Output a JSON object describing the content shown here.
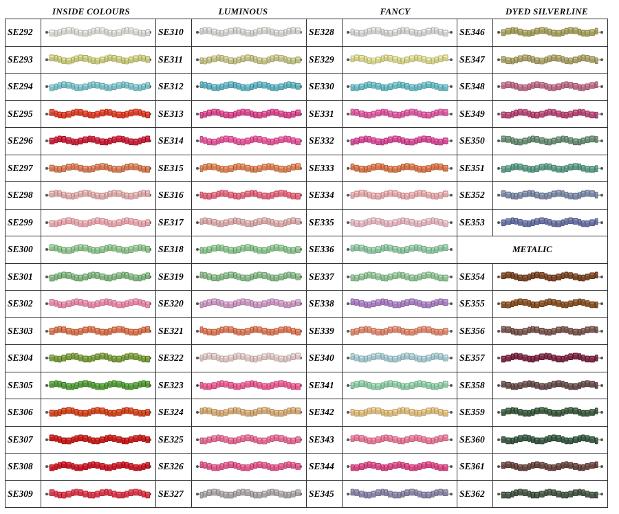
{
  "headers": [
    "INSIDE COLOURS",
    "LUMINOUS",
    "FANCY",
    "DYED SILVERLINE"
  ],
  "metalic_label": "METALIC",
  "columns": [
    {
      "codes": [
        "SE292",
        "SE293",
        "SE294",
        "SE295",
        "SE296",
        "SE297",
        "SE298",
        "SE299",
        "SE300",
        "SE301",
        "SE302",
        "SE303",
        "SE304",
        "SE305",
        "SE306",
        "SE307",
        "SE308",
        "SE309"
      ],
      "colors": [
        "#d4d6d0",
        "#c7c880",
        "#7dbec6",
        "#d6442f",
        "#c4253e",
        "#d17c58",
        "#dcaaa8",
        "#e4a5ab",
        "#8fc08e",
        "#82b481",
        "#e38aa4",
        "#d27552",
        "#7c9a43",
        "#569a3e",
        "#cb4a24",
        "#c2211f",
        "#c41c2c",
        "#d33d4e"
      ]
    },
    {
      "codes": [
        "SE310",
        "SE311",
        "SE312",
        "SE313",
        "SE314",
        "SE315",
        "SE316",
        "SE317",
        "SE318",
        "SE319",
        "SE320",
        "SE321",
        "SE322",
        "SE323",
        "SE324",
        "SE325",
        "SE326",
        "SE327"
      ],
      "colors": [
        "#cfd0cb",
        "#c2c08a",
        "#64b0bd",
        "#d24d8f",
        "#de5a9a",
        "#d68258",
        "#dd6a7d",
        "#d6aaa8",
        "#8cc08f",
        "#8ab789",
        "#c898c0",
        "#d67a5c",
        "#d8c4c1",
        "#e35f92",
        "#cfa878",
        "#df6e96",
        "#db5b8d",
        "#a8a4a8"
      ]
    },
    {
      "codes": [
        "SE328",
        "SE329",
        "SE330",
        "SE331",
        "SE332",
        "SE333",
        "SE334",
        "SE335",
        "SE336",
        "SE337",
        "SE338",
        "SE339",
        "SE340",
        "SE341",
        "SE342",
        "SE343",
        "SE344",
        "SE345"
      ],
      "colors": [
        "#cfd1cd",
        "#d4d28e",
        "#6db8c0",
        "#d65ea0",
        "#d04f97",
        "#d2774f",
        "#e3a8aa",
        "#e0b4be",
        "#8fc3a0",
        "#92c096",
        "#a680bf",
        "#d98870",
        "#a5c7cc",
        "#8ec8a4",
        "#d8ba7e",
        "#e27a98",
        "#d44b85",
        "#8985a4"
      ]
    },
    {
      "codes": [
        "SE346",
        "SE347",
        "SE348",
        "SE349",
        "SE350",
        "SE351",
        "SE352",
        "SE353"
      ],
      "colors": [
        "#a69f62",
        "#a9a06b",
        "#b86e84",
        "#b34c77",
        "#6c8e76",
        "#5f9a85",
        "#7d8ba6",
        "#6b73a1"
      ]
    },
    {
      "codes": [
        "SE354",
        "SE355",
        "SE356",
        "SE357",
        "SE358",
        "SE359",
        "SE360",
        "SE361",
        "SE362"
      ],
      "colors": [
        "#7a4a2a",
        "#86552c",
        "#7a5a52",
        "#7a2e48",
        "#6a5250",
        "#415e45",
        "#3e5c48",
        "#6b4a44",
        "#4c5a4c"
      ]
    }
  ]
}
